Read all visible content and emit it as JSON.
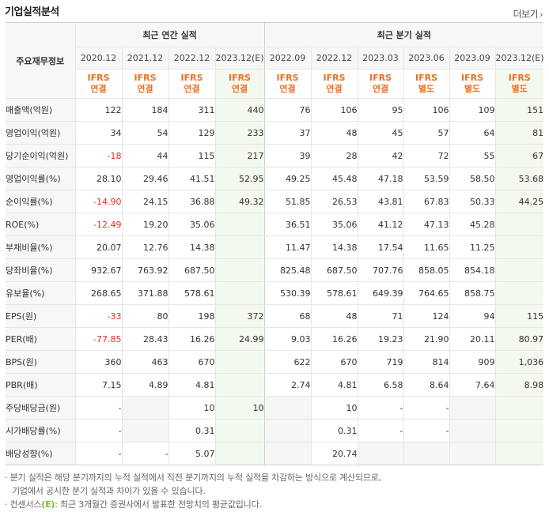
{
  "header": {
    "title": "기업실적분석",
    "more_label": "더보기"
  },
  "table": {
    "corner": "주요재무정보",
    "annual_label": "최근 연간 실적",
    "quarter_label": "최근 분기 실적",
    "annual_periods": [
      "2020.12",
      "2021.12",
      "2022.12",
      "2023.12(E)"
    ],
    "quarter_periods": [
      "2022.09",
      "2022.12",
      "2023.03",
      "2023.06",
      "2023.09",
      "2023.12(E)"
    ],
    "standards_top": [
      "IFRS",
      "IFRS",
      "IFRS",
      "IFRS",
      "IFRS",
      "IFRS",
      "IFRS",
      "IFRS",
      "IFRS",
      "IFRS"
    ],
    "standards_bottom": [
      "연결",
      "연결",
      "연결",
      "연결",
      "연결",
      "연결",
      "연결",
      "별도",
      "별도",
      "별도"
    ],
    "rows": [
      {
        "label": "매출액(억원)",
        "values": [
          "122",
          "184",
          "311",
          "440",
          "76",
          "106",
          "95",
          "106",
          "109",
          "151"
        ]
      },
      {
        "label": "영업이익(억원)",
        "values": [
          "34",
          "54",
          "129",
          "233",
          "37",
          "48",
          "45",
          "57",
          "64",
          "81"
        ]
      },
      {
        "label": "당기순이익(억원)",
        "values": [
          "-18",
          "44",
          "115",
          "217",
          "39",
          "28",
          "42",
          "72",
          "55",
          "67"
        ]
      },
      {
        "label": "영업이익률(%)",
        "values": [
          "28.10",
          "29.46",
          "41.51",
          "52.95",
          "49.25",
          "45.48",
          "47.18",
          "53.59",
          "58.50",
          "53.68"
        ]
      },
      {
        "label": "순이익률(%)",
        "values": [
          "-14.90",
          "24.15",
          "36.88",
          "49.32",
          "51.85",
          "26.53",
          "43.81",
          "67.83",
          "50.33",
          "44.25"
        ]
      },
      {
        "label": "ROE(%)",
        "values": [
          "-12.49",
          "19.20",
          "35.06",
          "",
          "36.51",
          "35.06",
          "41.12",
          "47.13",
          "45.28",
          ""
        ]
      },
      {
        "label": "부채비율(%)",
        "values": [
          "20.07",
          "12.76",
          "14.38",
          "",
          "11.47",
          "14.38",
          "17.54",
          "11.65",
          "11.25",
          ""
        ]
      },
      {
        "label": "당좌비율(%)",
        "values": [
          "932.67",
          "763.92",
          "687.50",
          "",
          "825.48",
          "687.50",
          "707.76",
          "858.05",
          "854.18",
          ""
        ]
      },
      {
        "label": "유보율(%)",
        "values": [
          "268.65",
          "371.88",
          "578.61",
          "",
          "530.39",
          "578.61",
          "649.39",
          "764.65",
          "858.75",
          ""
        ]
      },
      {
        "label": "EPS(원)",
        "values": [
          "-33",
          "80",
          "198",
          "372",
          "68",
          "48",
          "71",
          "124",
          "94",
          "115"
        ]
      },
      {
        "label": "PER(배)",
        "values": [
          "-77.85",
          "28.43",
          "16.26",
          "24.99",
          "9.03",
          "16.26",
          "19.23",
          "21.90",
          "20.11",
          "80.97"
        ]
      },
      {
        "label": "BPS(원)",
        "values": [
          "360",
          "463",
          "670",
          "",
          "622",
          "670",
          "719",
          "814",
          "909",
          "1,036"
        ]
      },
      {
        "label": "PBR(배)",
        "values": [
          "7.15",
          "4.89",
          "4.81",
          "",
          "2.74",
          "4.81",
          "6.58",
          "8.64",
          "7.64",
          "8.98"
        ]
      },
      {
        "label": "주당배당금(원)",
        "values": [
          "-",
          "",
          "10",
          "10",
          "",
          "10",
          "-",
          "-",
          "",
          ""
        ]
      },
      {
        "label": "시가배당률(%)",
        "values": [
          "-",
          "",
          "0.31",
          "",
          "",
          "0.31",
          "-",
          "-",
          "",
          ""
        ]
      },
      {
        "label": "배당성향(%)",
        "values": [
          "-",
          "-",
          "5.07",
          "",
          "",
          "20.74",
          "",
          "",
          "",
          ""
        ]
      }
    ]
  },
  "notes": {
    "line1": "· 분기 실적은 해당 분기까지의 누적 실적에서 직전 분기까지의 누적 실적을 차감하는 방식으로 계산되므로,",
    "line2": "  기업에서 공시한 분기 실적과 차이가 있을 수 있습니다.",
    "line3a": "· 컨센서스",
    "line3b": "(E)",
    "line3c": ": 최근 3개월간 증권사에서 발표한 전망치의 평균값입니다."
  }
}
